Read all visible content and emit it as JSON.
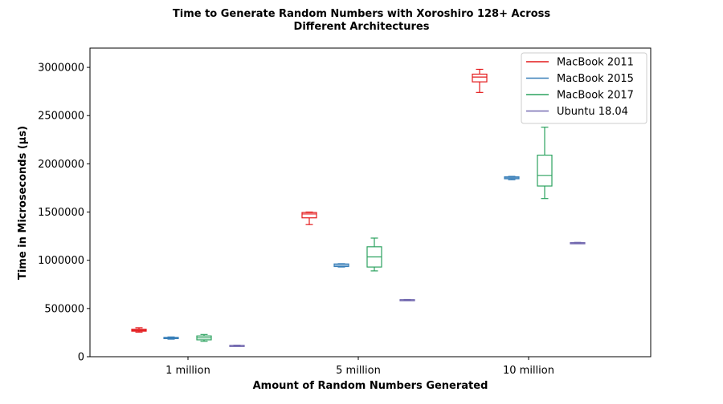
{
  "chart_data": {
    "type": "boxplot",
    "title": "Time to Generate Random Numbers with Xoroshiro 128+ Across\nDifferent Architectures",
    "xlabel": "Amount of Random Numbers Generated",
    "ylabel": "Time in Microseconds (µs)",
    "ylim": [
      0,
      3200000
    ],
    "yticks": [
      0,
      500000,
      1000000,
      1500000,
      2000000,
      2500000,
      3000000
    ],
    "ytick_labels": [
      "0",
      "500000",
      "1000000",
      "1500000",
      "2000000",
      "2500000",
      "3000000"
    ],
    "categories": [
      "1 million",
      "5 million",
      "10 million"
    ],
    "grid": false,
    "legend_position": "top-right",
    "series": [
      {
        "name": "MacBook 2011",
        "color": "#e41a1c",
        "boxes": [
          {
            "whislo": 255000,
            "q1": 265000,
            "med": 275000,
            "q3": 285000,
            "whishi": 300000
          },
          {
            "whislo": 1370000,
            "q1": 1440000,
            "med": 1480000,
            "q3": 1495000,
            "whishi": 1500000
          },
          {
            "whislo": 2740000,
            "q1": 2850000,
            "med": 2900000,
            "q3": 2930000,
            "whishi": 2980000
          }
        ]
      },
      {
        "name": "MacBook 2015",
        "color": "#377eb8",
        "boxes": [
          {
            "whislo": 182000,
            "q1": 188000,
            "med": 195000,
            "q3": 200000,
            "whishi": 205000
          },
          {
            "whislo": 930000,
            "q1": 935000,
            "med": 948000,
            "q3": 962000,
            "whishi": 965000
          },
          {
            "whislo": 1835000,
            "q1": 1845000,
            "med": 1855000,
            "q3": 1865000,
            "whishi": 1870000
          }
        ]
      },
      {
        "name": "MacBook 2017",
        "color": "#2ca25f",
        "boxes": [
          {
            "whislo": 160000,
            "q1": 175000,
            "med": 195000,
            "q3": 215000,
            "whishi": 230000
          },
          {
            "whislo": 890000,
            "q1": 930000,
            "med": 1035000,
            "q3": 1140000,
            "whishi": 1230000
          },
          {
            "whislo": 1640000,
            "q1": 1770000,
            "med": 1880000,
            "q3": 2090000,
            "whishi": 2380000
          }
        ]
      },
      {
        "name": "Ubuntu 18.04",
        "color": "#756bb1",
        "boxes": [
          {
            "whislo": 112000,
            "q1": 114000,
            "med": 116000,
            "q3": 118000,
            "whishi": 120000
          },
          {
            "whislo": 586000,
            "q1": 588000,
            "med": 590000,
            "q3": 592000,
            "whishi": 594000
          },
          {
            "whislo": 1174000,
            "q1": 1177000,
            "med": 1180000,
            "q3": 1183000,
            "whishi": 1186000
          }
        ]
      }
    ]
  }
}
